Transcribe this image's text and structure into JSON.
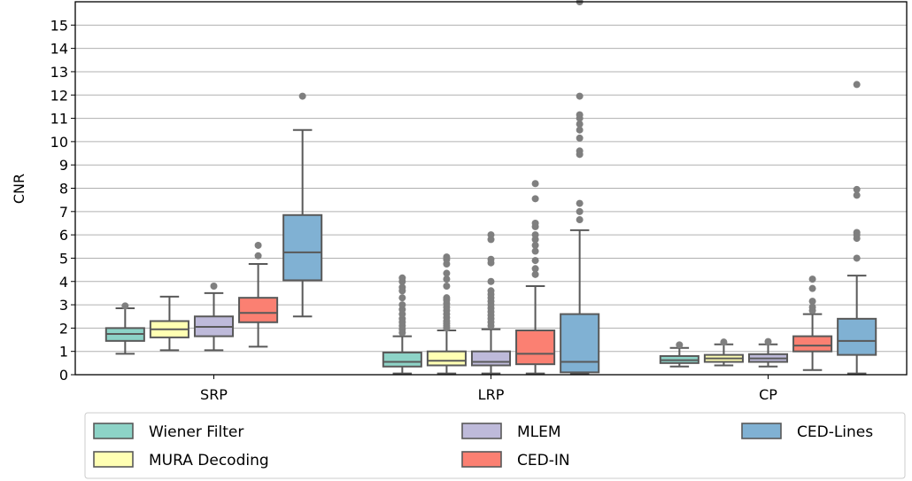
{
  "chart_data": {
    "type": "box",
    "title": "",
    "xlabel": "",
    "ylabel": "CNR",
    "ylim": [
      0,
      16
    ],
    "yticks": [
      0,
      1,
      2,
      3,
      4,
      5,
      6,
      7,
      8,
      9,
      10,
      11,
      12,
      13,
      14,
      15
    ],
    "grid": "y",
    "legend_position": "bottom",
    "categories": [
      "SRP",
      "LRP",
      "CP"
    ],
    "series": [
      {
        "name": "Wiener Filter",
        "color": "#8dd3c7",
        "boxes": [
          {
            "whislo": 0.9,
            "q1": 1.45,
            "med": 1.75,
            "q3": 2.0,
            "whishi": 2.85,
            "fliers": [
              2.95
            ]
          },
          {
            "whislo": 0.05,
            "q1": 0.35,
            "med": 0.55,
            "q3": 0.95,
            "whishi": 1.65,
            "fliers": [
              1.8,
              1.95,
              2.1,
              2.25,
              2.4,
              2.6,
              2.8,
              3.0,
              3.3,
              3.6,
              3.75,
              4.0,
              4.15
            ]
          },
          {
            "whislo": 0.35,
            "q1": 0.5,
            "med": 0.62,
            "q3": 0.8,
            "whishi": 1.15,
            "fliers": [
              1.28
            ]
          }
        ]
      },
      {
        "name": "MURA Decoding",
        "color": "#ffffb3",
        "boxes": [
          {
            "whislo": 1.05,
            "q1": 1.6,
            "med": 1.95,
            "q3": 2.3,
            "whishi": 3.35,
            "fliers": []
          },
          {
            "whislo": 0.05,
            "q1": 0.4,
            "med": 0.6,
            "q3": 1.0,
            "whishi": 1.9,
            "fliers": [
              2.0,
              2.1,
              2.2,
              2.3,
              2.45,
              2.6,
              2.75,
              2.9,
              3.05,
              3.2,
              3.3,
              3.8,
              4.1,
              4.35,
              4.75,
              4.95,
              5.05
            ]
          },
          {
            "whislo": 0.4,
            "q1": 0.55,
            "med": 0.7,
            "q3": 0.85,
            "whishi": 1.3,
            "fliers": [
              1.4
            ]
          }
        ]
      },
      {
        "name": "MLEM",
        "color": "#bebada",
        "boxes": [
          {
            "whislo": 1.05,
            "q1": 1.65,
            "med": 2.05,
            "q3": 2.5,
            "whishi": 3.5,
            "fliers": [
              3.8
            ]
          },
          {
            "whislo": 0.05,
            "q1": 0.4,
            "med": 0.55,
            "q3": 1.0,
            "whishi": 1.95,
            "fliers": [
              2.1,
              2.25,
              2.4,
              2.55,
              2.7,
              2.85,
              3.0,
              3.15,
              3.3,
              3.45,
              3.6,
              4.0,
              4.8,
              4.95,
              5.8,
              6.0
            ]
          },
          {
            "whislo": 0.35,
            "q1": 0.55,
            "med": 0.7,
            "q3": 0.88,
            "whishi": 1.3,
            "fliers": [
              1.42
            ]
          }
        ]
      },
      {
        "name": "CED-IN",
        "color": "#fb8072",
        "boxes": [
          {
            "whislo": 1.2,
            "q1": 2.25,
            "med": 2.65,
            "q3": 3.3,
            "whishi": 4.75,
            "fliers": [
              5.1,
              5.55
            ]
          },
          {
            "whislo": 0.05,
            "q1": 0.45,
            "med": 0.9,
            "q3": 1.9,
            "whishi": 3.8,
            "fliers": [
              4.3,
              4.55,
              4.9,
              5.3,
              5.55,
              5.8,
              6.0,
              6.35,
              6.5,
              7.55,
              8.2
            ]
          },
          {
            "whislo": 0.2,
            "q1": 1.0,
            "med": 1.25,
            "q3": 1.65,
            "whishi": 2.6,
            "fliers": [
              2.75,
              2.9,
              3.15,
              3.7,
              4.1
            ]
          }
        ]
      },
      {
        "name": "CED-Lines",
        "color": "#80b1d3",
        "boxes": [
          {
            "whislo": 2.5,
            "q1": 4.05,
            "med": 5.25,
            "q3": 6.85,
            "whishi": 10.5,
            "fliers": [
              11.95
            ]
          },
          {
            "whislo": 0.05,
            "q1": 0.1,
            "med": 0.55,
            "q3": 2.6,
            "whishi": 6.2,
            "fliers": [
              6.65,
              7.0,
              7.35,
              9.45,
              9.6,
              10.15,
              10.5,
              10.75,
              11.0,
              11.15,
              11.95,
              16.0
            ]
          },
          {
            "whislo": 0.05,
            "q1": 0.85,
            "med": 1.45,
            "q3": 2.4,
            "whishi": 4.25,
            "fliers": [
              5.0,
              5.85,
              6.0,
              6.1,
              7.7,
              7.95,
              12.45
            ]
          }
        ]
      }
    ],
    "legend": [
      "Wiener Filter",
      "MURA Decoding",
      "MLEM",
      "CED-IN",
      "CED-Lines"
    ]
  }
}
